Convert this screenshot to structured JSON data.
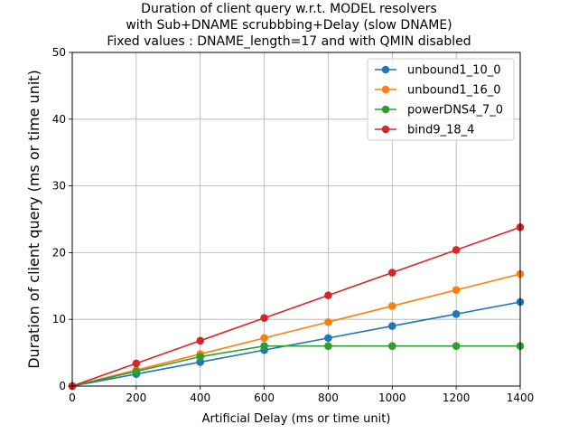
{
  "chart_data": {
    "type": "line",
    "title_lines": [
      "Duration of client query w.r.t. MODEL resolvers",
      "with Sub+DNAME scrubbbing+Delay (slow DNAME)",
      "Fixed values : DNAME_length=17 and with QMIN disabled"
    ],
    "xlabel": "Artificial Delay (ms or time unit)",
    "ylabel": "Duration of client query (ms or time unit)",
    "xlim": [
      0,
      1400
    ],
    "ylim": [
      0,
      50
    ],
    "xticks": [
      0,
      200,
      400,
      600,
      800,
      1000,
      1200,
      1400
    ],
    "yticks": [
      0,
      10,
      20,
      30,
      40,
      50
    ],
    "xtick_labels": [
      "0",
      "200",
      "400",
      "600",
      "800",
      "1000",
      "1200",
      "1400"
    ],
    "ytick_labels": [
      "0",
      "10",
      "20",
      "30",
      "40",
      "50"
    ],
    "grid": true,
    "legend_position": "top-right",
    "x": [
      0,
      200,
      400,
      600,
      800,
      1000,
      1200,
      1400
    ],
    "series": [
      {
        "name": "unbound1_10_0",
        "color": "#1f77b4",
        "values": [
          0,
          1.8,
          3.6,
          5.4,
          7.2,
          9.0,
          10.8,
          12.6
        ]
      },
      {
        "name": "unbound1_16_0",
        "color": "#ff7f0e",
        "values": [
          0,
          2.4,
          4.8,
          7.2,
          9.6,
          12.0,
          14.4,
          16.8
        ]
      },
      {
        "name": "powerDNS4_7_0",
        "color": "#2ca02c",
        "values": [
          0,
          2.2,
          4.4,
          6.0,
          6.0,
          6.0,
          6.0,
          6.0
        ]
      },
      {
        "name": "bind9_18_4",
        "color": "#d62728",
        "values": [
          0,
          3.4,
          6.8,
          10.2,
          13.6,
          17.0,
          20.4,
          23.8
        ]
      }
    ]
  }
}
